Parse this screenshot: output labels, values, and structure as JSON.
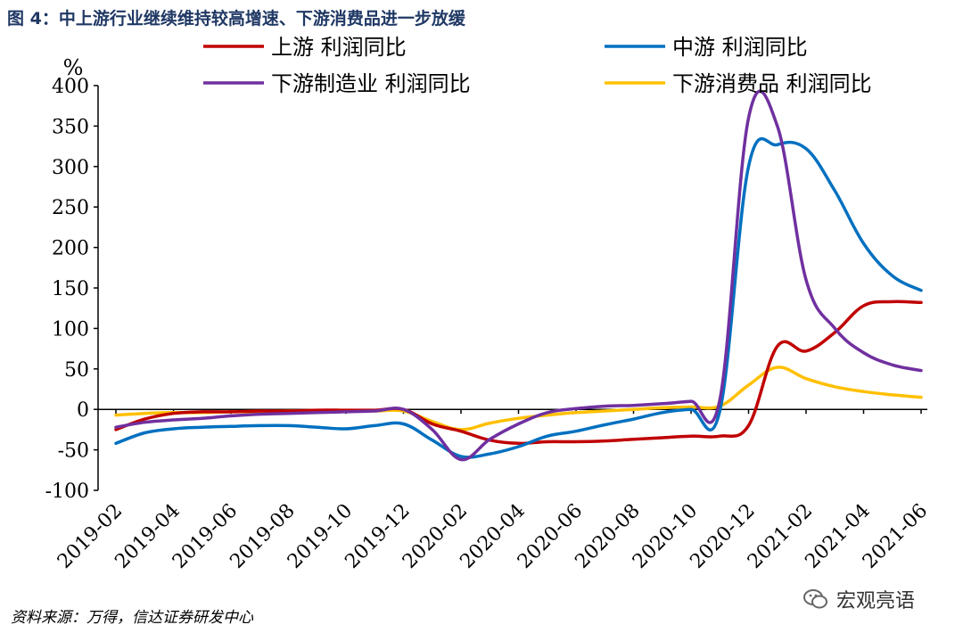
{
  "title": "图 4：中上游行业继续维持较高增速、下游消费品进一步放缓",
  "source": "资料来源：万得，信达证券研发中心",
  "watermark": "宏观亮语",
  "chart_data": {
    "type": "line",
    "ylabel": "%",
    "ylim": [
      -100,
      400
    ],
    "yticks": [
      -100,
      -50,
      0,
      50,
      100,
      150,
      200,
      250,
      300,
      350,
      400
    ],
    "x": [
      "2019-02",
      "2019-03",
      "2019-04",
      "2019-05",
      "2019-06",
      "2019-07",
      "2019-08",
      "2019-09",
      "2019-10",
      "2019-11",
      "2019-12",
      "2020-01",
      "2020-02",
      "2020-03",
      "2020-04",
      "2020-05",
      "2020-06",
      "2020-07",
      "2020-08",
      "2020-09",
      "2020-10",
      "2020-11",
      "2020-12",
      "2021-01",
      "2021-02",
      "2021-03",
      "2021-04",
      "2021-05",
      "2021-06"
    ],
    "xtick_labels": [
      "2019-02",
      "2019-04",
      "2019-06",
      "2019-08",
      "2019-10",
      "2019-12",
      "2020-02",
      "2020-04",
      "2020-06",
      "2020-08",
      "2020-10",
      "2020-12",
      "2021-02",
      "2021-04",
      "2021-06"
    ],
    "legend_placement": "top",
    "series": [
      {
        "name": "上游 利润同比",
        "color": "#c00000",
        "values": [
          -25,
          -12,
          -5,
          -3,
          -3,
          -2,
          -2,
          -1,
          -1,
          -1,
          0,
          -18,
          -27,
          -38,
          -42,
          -40,
          -40,
          -39,
          -37,
          -35,
          -33,
          -33,
          -20,
          78,
          72,
          95,
          128,
          133,
          132
        ]
      },
      {
        "name": "中游 利润同比",
        "color": "#0070c0",
        "values": [
          -42,
          -29,
          -24,
          -22,
          -21,
          -20,
          -20,
          -22,
          -24,
          -20,
          -18,
          -38,
          -58,
          -55,
          -46,
          -33,
          -27,
          -19,
          -12,
          -4,
          0,
          -2,
          300,
          327,
          322,
          270,
          205,
          165,
          147
        ]
      },
      {
        "name": "下游制造业 利润同比",
        "color": "#7030a0",
        "values": [
          -22,
          -16,
          -13,
          -11,
          -8,
          -6,
          -5,
          -4,
          -3,
          -2,
          0,
          -25,
          -62,
          -37,
          -18,
          -4,
          1,
          4,
          5,
          7,
          10,
          12,
          360,
          350,
          160,
          100,
          70,
          55,
          48
        ]
      },
      {
        "name": "下游消费品 利润同比",
        "color": "#ffc000",
        "values": [
          -7,
          -5,
          -4,
          -4,
          -3,
          -3,
          -2,
          -2,
          -2,
          -2,
          -2,
          -15,
          -25,
          -17,
          -11,
          -7,
          -4,
          -2,
          0,
          2,
          3,
          4,
          30,
          52,
          38,
          28,
          22,
          18,
          15
        ]
      }
    ]
  }
}
